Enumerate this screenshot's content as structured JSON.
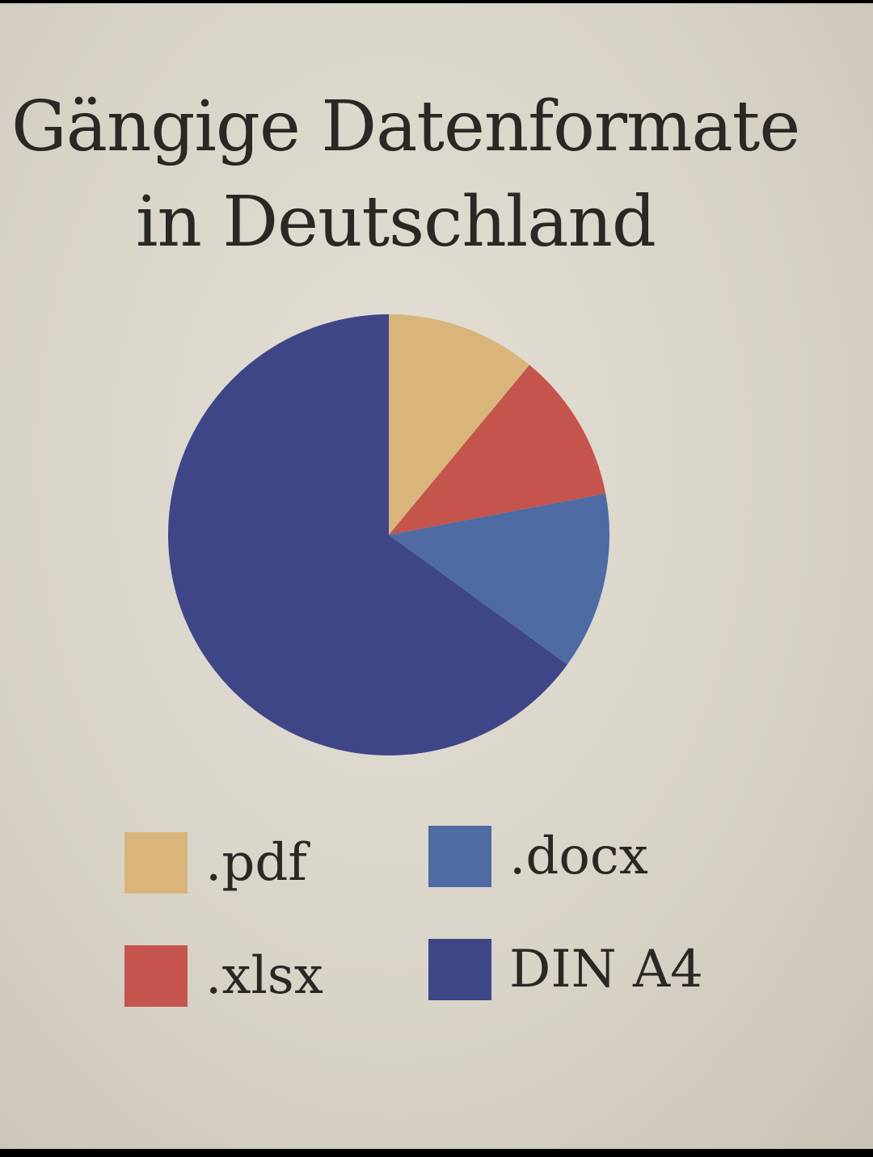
{
  "title_line1": "Gängige Datenformate",
  "title_line2": "in Deutschland",
  "chart_data": {
    "type": "pie",
    "title": "Gängige Datenformate in Deutschland",
    "slices": [
      {
        "label": ".pdf",
        "value": 11,
        "color": "#d9b57c"
      },
      {
        "label": ".xlsx",
        "value": 11,
        "color": "#c4544c"
      },
      {
        "label": ".docx",
        "value": 13,
        "color": "#4f6ba3"
      },
      {
        "label": "DIN A4",
        "value": 65,
        "color": "#3f4688"
      }
    ],
    "start": "12 o'clock, clockwise",
    "legend": {
      "placement": "bottom",
      "items": [
        {
          "label": ".pdf",
          "color": "#d9b57c"
        },
        {
          "label": ".docx",
          "color": "#4f6ba3"
        },
        {
          "label": ".xlsx",
          "color": "#c4544c"
        },
        {
          "label": "DIN A4",
          "color": "#3f4688"
        }
      ]
    }
  }
}
